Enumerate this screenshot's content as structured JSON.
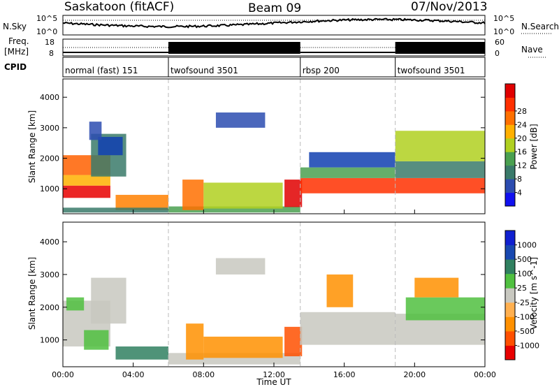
{
  "header": {
    "station": "Saskatoon (fitACF)",
    "beam": "Beam 09",
    "date": "07/Nov/2013"
  },
  "strip_panels": {
    "sky": {
      "left_label": "N.Sky",
      "right_label": "N.Search",
      "left_ticks": [
        "10^5",
        "10^0"
      ],
      "right_ticks": [
        "10^5",
        "10^0"
      ]
    },
    "freq": {
      "left_label_line1": "Freq.",
      "left_label_line2": "[MHz]",
      "right_label": "Nave",
      "left_ticks": [
        "18",
        "8"
      ],
      "right_ticks": [
        "60",
        "0"
      ]
    },
    "cpid": {
      "label": "CPID",
      "segments": [
        {
          "name": "normal (fast) 151",
          "start_h": 0.0,
          "end_h": 6.0
        },
        {
          "name": "twofsound 3501",
          "start_h": 6.0,
          "end_h": 13.5
        },
        {
          "name": "rbsp 200",
          "start_h": 13.5,
          "end_h": 18.9
        },
        {
          "name": "twofsound 3501",
          "start_h": 18.9,
          "end_h": 24.0
        }
      ]
    }
  },
  "power_colorbar": {
    "label": "Power [dB]",
    "ticks": [
      "4",
      "8",
      "12",
      "16",
      "20",
      "24",
      "28"
    ],
    "colors": [
      "#1010f0",
      "#2c4cb0",
      "#3a7a6a",
      "#4aa050",
      "#b0d020",
      "#ffb000",
      "#ff7000",
      "#ff3000",
      "#e00000"
    ]
  },
  "velocity_colorbar": {
    "label": "Velocity [m s^-1]",
    "ticks": [
      "-1000",
      "-500",
      "-100",
      "-25",
      "25",
      "100",
      "500",
      "1000"
    ],
    "colors": [
      "#e80000",
      "#ff5000",
      "#ff9000",
      "#ffb050",
      "#c8c8c0",
      "#50c040",
      "#308060",
      "#1848b0",
      "#1020d0"
    ]
  },
  "chart_data": {
    "type": "heatmap",
    "xlabel": "Time UT",
    "x_ticks": [
      "00:00",
      "04:00",
      "08:00",
      "12:00",
      "16:00",
      "20:00",
      "00:00"
    ],
    "xlim": [
      0,
      24
    ],
    "ylabel": "Slant Range [km]",
    "y_ticks": [
      "1000",
      "2000",
      "3000",
      "4000"
    ],
    "ylim": [
      180,
      4600
    ],
    "mode_boundaries_h": [
      6.0,
      13.5,
      18.9
    ],
    "panels": [
      {
        "quantity": "Power",
        "regions": [
          {
            "t0": 0.0,
            "t1": 2.7,
            "r0": 1450,
            "r1": 2100,
            "c": "#ff6000"
          },
          {
            "t0": 0.0,
            "t1": 2.7,
            "r0": 1100,
            "r1": 1450,
            "c": "#ffb000"
          },
          {
            "t0": 0.0,
            "t1": 2.7,
            "r0": 700,
            "r1": 1100,
            "c": "#e80000"
          },
          {
            "t0": 1.6,
            "t1": 3.6,
            "r0": 1400,
            "r1": 2800,
            "c": "#3a7a6a"
          },
          {
            "t0": 2.0,
            "t1": 3.4,
            "r0": 2100,
            "r1": 2700,
            "c": "#1040b0"
          },
          {
            "t0": 1.5,
            "t1": 2.2,
            "r0": 2600,
            "r1": 3200,
            "c": "#2c4cb0"
          },
          {
            "t0": 3.0,
            "t1": 6.0,
            "r0": 300,
            "r1": 800,
            "c": "#ff8000"
          },
          {
            "t0": 0.0,
            "t1": 6.0,
            "r0": 220,
            "r1": 380,
            "c": "#3a7a6a"
          },
          {
            "t0": 6.0,
            "t1": 13.5,
            "r0": 220,
            "r1": 420,
            "c": "#4aa050"
          },
          {
            "t0": 6.8,
            "t1": 8.0,
            "r0": 300,
            "r1": 1300,
            "c": "#ff7000"
          },
          {
            "t0": 8.0,
            "t1": 12.5,
            "r0": 350,
            "r1": 1200,
            "c": "#b0d020"
          },
          {
            "t0": 8.7,
            "t1": 11.5,
            "r0": 3000,
            "r1": 3500,
            "c": "#2c4cb0"
          },
          {
            "t0": 12.6,
            "t1": 13.6,
            "r0": 400,
            "r1": 1300,
            "c": "#e00000"
          },
          {
            "t0": 13.5,
            "t1": 18.9,
            "r0": 850,
            "r1": 1350,
            "c": "#ff3000"
          },
          {
            "t0": 13.5,
            "t1": 18.9,
            "r0": 1350,
            "r1": 1700,
            "c": "#4aa050"
          },
          {
            "t0": 14.0,
            "t1": 18.9,
            "r0": 1700,
            "r1": 2200,
            "c": "#1040b0"
          },
          {
            "t0": 18.9,
            "t1": 24.0,
            "r0": 850,
            "r1": 1350,
            "c": "#ff3000"
          },
          {
            "t0": 18.9,
            "t1": 24.0,
            "r0": 1350,
            "r1": 1900,
            "c": "#3a7a6a"
          },
          {
            "t0": 18.9,
            "t1": 24.0,
            "r0": 1900,
            "r1": 2900,
            "c": "#b0d020"
          }
        ]
      },
      {
        "quantity": "Velocity",
        "regions": [
          {
            "t0": 0.0,
            "t1": 2.7,
            "r0": 800,
            "r1": 2200,
            "c": "#c8c8c0"
          },
          {
            "t0": 1.6,
            "t1": 3.6,
            "r0": 1500,
            "r1": 2900,
            "c": "#c8c8c0"
          },
          {
            "t0": 1.2,
            "t1": 2.6,
            "r0": 700,
            "r1": 1300,
            "c": "#50c040"
          },
          {
            "t0": 0.2,
            "t1": 1.2,
            "r0": 1900,
            "r1": 2300,
            "c": "#50c040"
          },
          {
            "t0": 3.0,
            "t1": 6.0,
            "r0": 400,
            "r1": 800,
            "c": "#308060"
          },
          {
            "t0": 6.0,
            "t1": 13.5,
            "r0": 250,
            "r1": 600,
            "c": "#c8c8c0"
          },
          {
            "t0": 7.0,
            "t1": 8.0,
            "r0": 400,
            "r1": 1500,
            "c": "#ff9000"
          },
          {
            "t0": 8.0,
            "t1": 12.5,
            "r0": 450,
            "r1": 1100,
            "c": "#ff9000"
          },
          {
            "t0": 8.7,
            "t1": 11.5,
            "r0": 3000,
            "r1": 3500,
            "c": "#c8c8c0"
          },
          {
            "t0": 12.6,
            "t1": 13.6,
            "r0": 500,
            "r1": 1400,
            "c": "#ff5000"
          },
          {
            "t0": 13.5,
            "t1": 18.9,
            "r0": 850,
            "r1": 1850,
            "c": "#c8c8c0"
          },
          {
            "t0": 15.0,
            "t1": 16.5,
            "r0": 2000,
            "r1": 3000,
            "c": "#ff9000"
          },
          {
            "t0": 18.9,
            "t1": 24.0,
            "r0": 850,
            "r1": 1800,
            "c": "#c8c8c0"
          },
          {
            "t0": 19.5,
            "t1": 24.0,
            "r0": 1600,
            "r1": 2300,
            "c": "#50c040"
          },
          {
            "t0": 20.0,
            "t1": 22.5,
            "r0": 2300,
            "r1": 2900,
            "c": "#ff9000"
          }
        ]
      }
    ]
  }
}
